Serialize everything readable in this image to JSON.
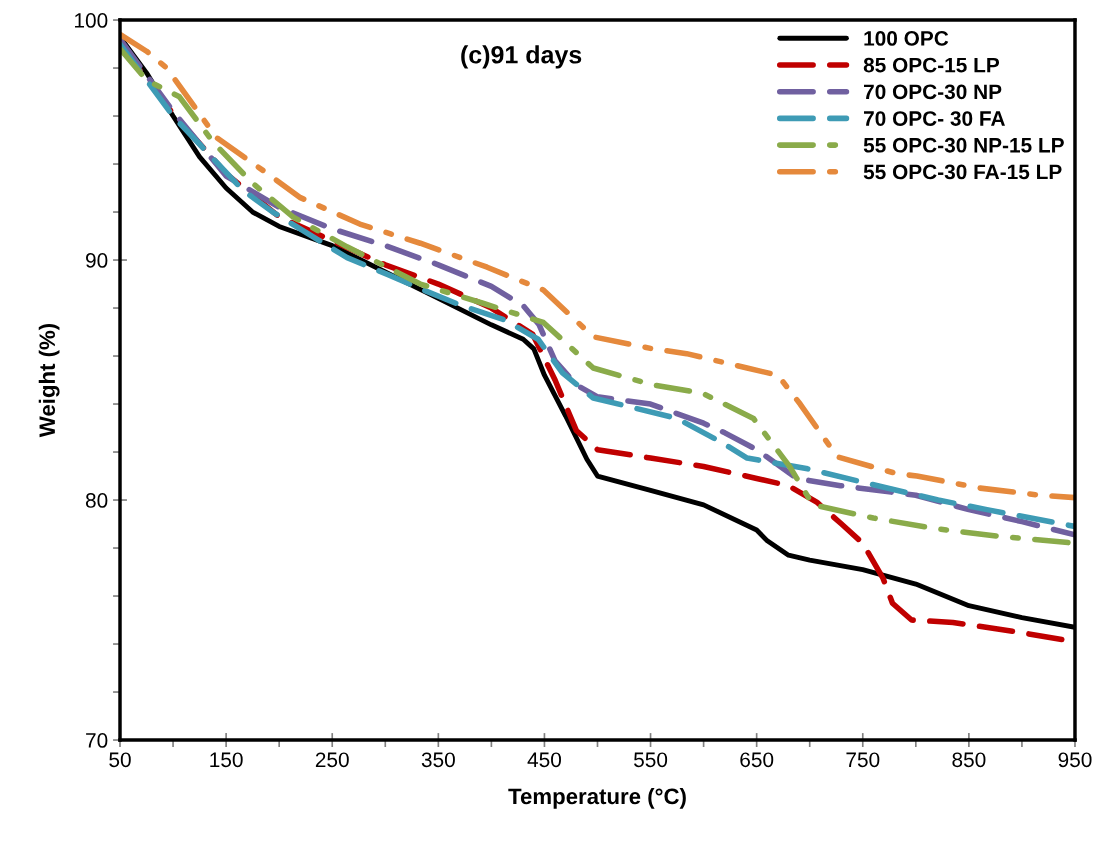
{
  "chart_data": {
    "type": "line",
    "title": "(c)91 days",
    "xlabel": "Temperature (°C)",
    "ylabel": "Weight (%)",
    "xlim": [
      50,
      950
    ],
    "xticks": [
      50,
      150,
      250,
      350,
      450,
      550,
      650,
      750,
      850,
      950
    ],
    "ylim": [
      70,
      100
    ],
    "yticks": [
      70,
      80,
      90,
      100
    ],
    "grid": false,
    "legend": "top right",
    "marker": "none",
    "series": [
      {
        "name": "100 OPC",
        "color": "#000000",
        "line_style": "solid",
        "x": [
          50,
          75,
          100,
          125,
          150,
          175,
          200,
          250,
          300,
          350,
          400,
          430,
          440,
          450,
          470,
          490,
          500,
          550,
          600,
          650,
          660,
          680,
          700,
          750,
          800,
          850,
          900,
          950
        ],
        "values": [
          99.3,
          97.8,
          96.0,
          94.3,
          93.0,
          92.0,
          91.4,
          90.6,
          89.5,
          88.4,
          87.3,
          86.7,
          86.3,
          85.2,
          83.5,
          81.7,
          81.0,
          80.4,
          79.8,
          78.75,
          78.3,
          77.7,
          77.5,
          77.1,
          76.5,
          75.6,
          75.1,
          74.7
        ]
      },
      {
        "name": "85 OPC-15 LP",
        "color": "#c00000",
        "line_style": "dashed",
        "x": [
          50,
          100,
          150,
          200,
          250,
          300,
          350,
          400,
          439,
          460,
          480,
          500,
          550,
          600,
          650,
          680,
          707,
          730,
          750,
          769,
          778,
          796,
          835,
          896,
          950
        ],
        "values": [
          99.0,
          96.1,
          93.6,
          91.8,
          90.8,
          89.8,
          89.0,
          88.0,
          86.9,
          85.0,
          82.9,
          82.1,
          81.75,
          81.4,
          80.9,
          80.6,
          79.9,
          79.0,
          78.2,
          76.75,
          75.7,
          75.0,
          74.9,
          74.5,
          74.1
        ]
      },
      {
        "name": "70 OPC-30 NP",
        "color": "#7060a0",
        "line_style": "dashed",
        "x": [
          50,
          100,
          150,
          200,
          250,
          300,
          350,
          400,
          430,
          445,
          460,
          480,
          500,
          550,
          600,
          620,
          650,
          688,
          729,
          800,
          850,
          900,
          950
        ],
        "values": [
          99.2,
          96.2,
          93.5,
          92.2,
          91.3,
          90.6,
          89.8,
          88.9,
          88.1,
          87.3,
          85.8,
          84.8,
          84.3,
          84.0,
          83.2,
          82.8,
          82.1,
          80.9,
          80.6,
          80.2,
          79.6,
          79.1,
          78.55
        ]
      },
      {
        "name": "70 OPC- 30 FA",
        "color": "#3e9bb5",
        "line_style": "dashed",
        "x": [
          50,
          100,
          166,
          194,
          264,
          302,
          336,
          372,
          413,
          444,
          467,
          496,
          529,
          575,
          617,
          641,
          698,
          754,
          821,
          867,
          950
        ],
        "values": [
          99.0,
          96.0,
          92.9,
          92.0,
          90.1,
          89.4,
          88.75,
          88.1,
          87.5,
          86.7,
          85.3,
          84.25,
          83.9,
          83.4,
          82.4,
          81.75,
          81.3,
          80.7,
          80.0,
          79.6,
          78.9
        ]
      },
      {
        "name": "55 OPC-30 NP-15 LP",
        "color": "#8aab4a",
        "line_style": "dashdot",
        "x": [
          50,
          75,
          106,
          138,
          175,
          213,
          264,
          333,
          392,
          449,
          496,
          552,
          599,
          647,
          681,
          703,
          760,
          820,
          876,
          950
        ],
        "values": [
          98.8,
          97.5,
          96.8,
          94.9,
          93.2,
          91.8,
          90.55,
          89.0,
          88.2,
          87.4,
          85.5,
          84.8,
          84.45,
          83.4,
          81.4,
          79.8,
          79.25,
          78.8,
          78.5,
          78.2
        ]
      },
      {
        "name": "55 OPC-30 FA-15 LP",
        "color": "#e5893c",
        "line_style": "dashdot",
        "x": [
          50,
          75,
          94,
          141,
          189,
          220,
          276,
          333,
          396,
          449,
          496,
          552,
          584,
          641,
          670,
          691,
          726,
          782,
          801,
          860,
          917,
          950
        ],
        "values": [
          99.4,
          98.7,
          98.0,
          95.1,
          93.6,
          92.6,
          91.5,
          90.7,
          89.7,
          88.75,
          86.8,
          86.3,
          86.1,
          85.5,
          85.2,
          84.0,
          81.8,
          81.1,
          81.0,
          80.5,
          80.2,
          80.1
        ]
      }
    ]
  }
}
